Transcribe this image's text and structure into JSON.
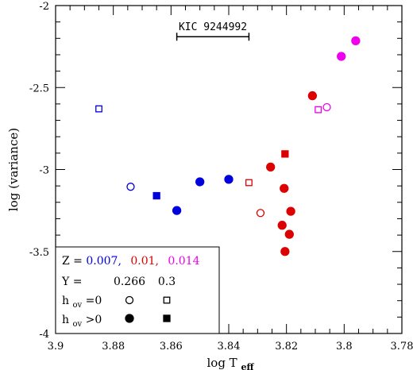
{
  "chart_data": {
    "type": "scatter",
    "xlabel": "log T",
    "xlabel_sub": "eff",
    "ylabel": "log (variance)",
    "xlim": [
      3.9,
      3.78
    ],
    "ylim": [
      -4,
      -2
    ],
    "x_ticks": [
      3.9,
      3.88,
      3.86,
      3.84,
      3.82,
      3.8,
      3.78
    ],
    "x_tick_labels": [
      "3.9",
      "3.88",
      "3.86",
      "3.84",
      "3.82",
      "3.8",
      "3.78"
    ],
    "y_ticks": [
      -4,
      -3.5,
      -3,
      -2.5,
      -2
    ],
    "y_tick_labels": [
      "-4",
      "-3.5",
      "-3",
      "-2.5",
      "-2"
    ],
    "annotation": {
      "label": "KIC 9244992",
      "x_range": [
        3.858,
        3.833
      ],
      "y": -2.19
    },
    "colors": {
      "blue": "#0000dd",
      "red": "#dd0000",
      "magenta": "#ee00ee"
    },
    "series": [
      {
        "Z": "0.007",
        "Y": "0.266",
        "hov": "0",
        "marker": "open-circle",
        "color": "blue",
        "points": [
          {
            "x": 3.874,
            "y": -3.105
          }
        ]
      },
      {
        "Z": "0.007",
        "Y": "0.266",
        "hov": ">0",
        "marker": "filled-circle",
        "color": "blue",
        "points": [
          {
            "x": 3.858,
            "y": -3.25
          },
          {
            "x": 3.85,
            "y": -3.075
          },
          {
            "x": 3.84,
            "y": -3.06
          }
        ]
      },
      {
        "Z": "0.007",
        "Y": "0.3",
        "hov": "0",
        "marker": "open-square",
        "color": "blue",
        "points": [
          {
            "x": 3.885,
            "y": -2.63
          }
        ]
      },
      {
        "Z": "0.007",
        "Y": "0.3",
        "hov": ">0",
        "marker": "filled-square",
        "color": "blue",
        "points": [
          {
            "x": 3.865,
            "y": -3.16
          }
        ]
      },
      {
        "Z": "0.01",
        "Y": "0.266",
        "hov": "0",
        "marker": "open-circle",
        "color": "red",
        "points": [
          {
            "x": 3.829,
            "y": -3.265
          }
        ]
      },
      {
        "Z": "0.01",
        "Y": "0.266",
        "hov": ">0",
        "marker": "filled-circle",
        "color": "red",
        "points": [
          {
            "x": 3.8255,
            "y": -2.985
          },
          {
            "x": 3.8208,
            "y": -3.115
          },
          {
            "x": 3.8185,
            "y": -3.255
          },
          {
            "x": 3.8215,
            "y": -3.34
          },
          {
            "x": 3.819,
            "y": -3.395
          },
          {
            "x": 3.8205,
            "y": -3.5
          },
          {
            "x": 3.811,
            "y": -2.55
          }
        ]
      },
      {
        "Z": "0.01",
        "Y": "0.3",
        "hov": "0",
        "marker": "open-square",
        "color": "red",
        "points": [
          {
            "x": 3.833,
            "y": -3.08
          }
        ]
      },
      {
        "Z": "0.01",
        "Y": "0.3",
        "hov": ">0",
        "marker": "filled-square",
        "color": "red",
        "points": [
          {
            "x": 3.8205,
            "y": -2.905
          }
        ]
      },
      {
        "Z": "0.014",
        "Y": "0.266",
        "hov": "0",
        "marker": "open-circle",
        "color": "magenta",
        "points": [
          {
            "x": 3.806,
            "y": -2.62
          }
        ]
      },
      {
        "Z": "0.014",
        "Y": "0.266",
        "hov": ">0",
        "marker": "filled-circle",
        "color": "magenta",
        "points": [
          {
            "x": 3.801,
            "y": -2.31
          },
          {
            "x": 3.796,
            "y": -2.215
          }
        ]
      },
      {
        "Z": "0.014",
        "Y": "0.3",
        "hov": "0",
        "marker": "open-square",
        "color": "magenta",
        "points": [
          {
            "x": 3.809,
            "y": -2.635
          }
        ]
      }
    ],
    "legend": {
      "placement": "bottom-left",
      "z_prefix": "Z = ",
      "z_values": [
        {
          "text": "0.007,",
          "color": "blue"
        },
        {
          "text": "0.01,",
          "color": "red"
        },
        {
          "text": "0.014",
          "color": "magenta"
        }
      ],
      "y_prefix": "Y =",
      "y_values": [
        "0.266",
        "0.3"
      ],
      "row_hov0": {
        "main": "h",
        "sub": "ov",
        "rest": "=0"
      },
      "row_hovpos": {
        "main": "h",
        "sub": "ov",
        "rest": ">0"
      }
    }
  }
}
